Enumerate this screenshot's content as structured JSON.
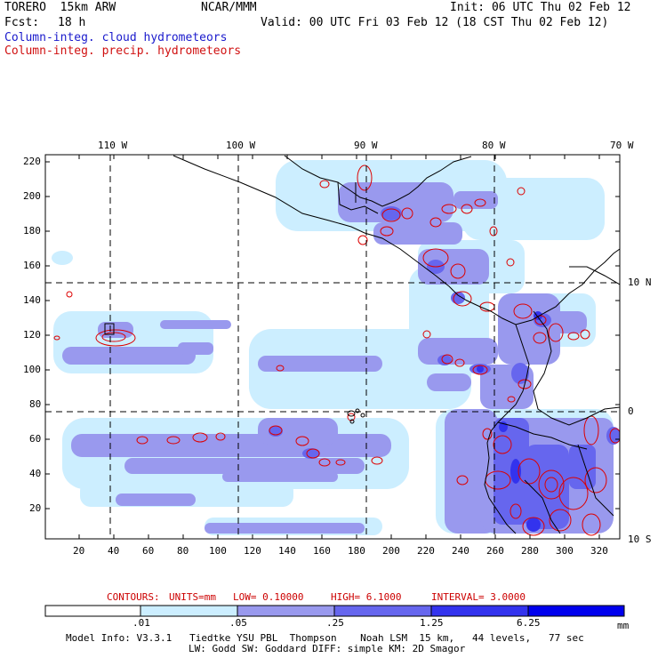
{
  "header": {
    "model": "TORERO  15km ARW",
    "org": "NCAR/MMM",
    "init": "Init: 06 UTC Thu 02 Feb 12",
    "fcst_label": "Fcst:",
    "fcst_value": "18 h",
    "valid": "Valid: 00 UTC Fri 03 Feb 12 (18 CST Thu 02 Feb 12)"
  },
  "legend": {
    "cloud": "Column-integ. cloud hydrometeors",
    "precip": "Column-integ. precip. hydrometeors"
  },
  "map": {
    "lon_labels": [
      "110 W",
      "100 W",
      "90 W",
      "80 W",
      "70 W"
    ],
    "lat_labels": [
      "10 N",
      "0",
      "10 S"
    ],
    "y_ticks": [
      "220",
      "200",
      "180",
      "160",
      "140",
      "120",
      "100",
      "80",
      "60",
      "40",
      "20"
    ],
    "x_ticks": [
      "20",
      "40",
      "60",
      "80",
      "100",
      "120",
      "140",
      "160",
      "180",
      "200",
      "220",
      "240",
      "260",
      "280",
      "300",
      "320"
    ],
    "colors": {
      "shade1": "#cceeff",
      "shade2": "#9999ee",
      "shade3": "#6666ee",
      "shade4": "#3333ee",
      "shade5": "#0000ee",
      "contour": "#dd0000",
      "grid": "#000000"
    }
  },
  "contours": {
    "label": "CONTOURS:",
    "units": "UNITS=mm",
    "low": "LOW= 0.10000",
    "high": "HIGH= 6.1000",
    "interval": "INTERVAL= 3.0000"
  },
  "colorbar": {
    "levels": [
      ".01",
      ".05",
      ".25",
      "1.25",
      "6.25"
    ],
    "unit": "mm"
  },
  "footer": {
    "line1": "Model Info: V3.3.1   Tiedtke YSU PBL  Thompson    Noah LSM  15 km,   44 levels,   77 sec",
    "line2": "LW: Godd SW: Goddard DIFF: simple KM: 2D Smagor"
  }
}
